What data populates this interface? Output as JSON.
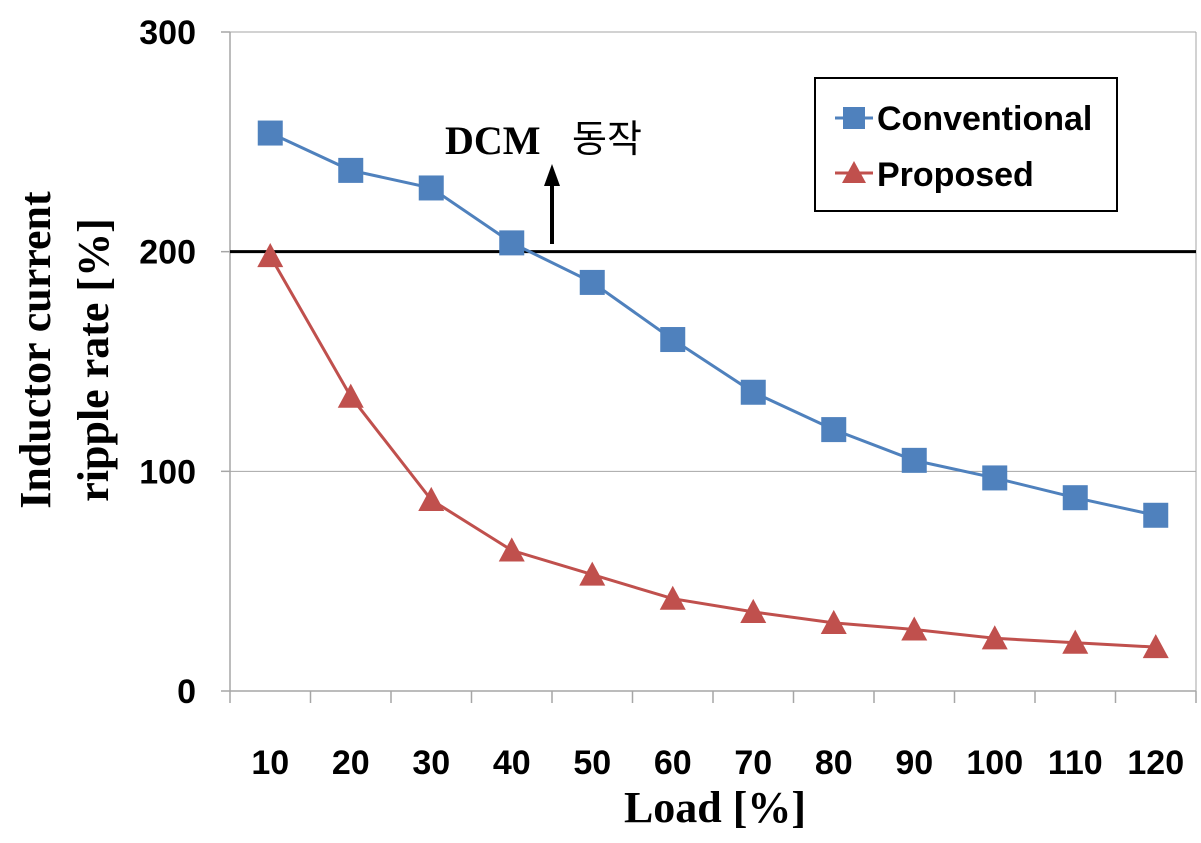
{
  "chart_data": {
    "type": "line",
    "categories": [
      "10",
      "20",
      "30",
      "40",
      "50",
      "60",
      "70",
      "80",
      "90",
      "100",
      "110",
      "120"
    ],
    "series": [
      {
        "name": "Conventional",
        "color": "#4F81BD",
        "marker": "square",
        "values": [
          254,
          237,
          229,
          204,
          186,
          160,
          136,
          119,
          105,
          97,
          88,
          80
        ]
      },
      {
        "name": "Proposed",
        "color": "#C0504D",
        "marker": "triangle",
        "values": [
          198,
          134,
          87,
          64,
          53,
          42,
          36,
          31,
          28,
          24,
          22,
          20
        ]
      }
    ],
    "xlabel": "Load [%]",
    "ylabel_line1": "Inductor current",
    "ylabel_line2": "ripple rate [%]",
    "ylim": [
      0,
      300
    ],
    "yticks": [
      0,
      100,
      200,
      300
    ],
    "grid": "horizontal",
    "legend_position": "top-right",
    "reference_line": {
      "value": 200,
      "color": "#000000"
    },
    "annotation": {
      "text_latin": "DCM",
      "text_korean": "동작",
      "arrow": "up"
    }
  }
}
